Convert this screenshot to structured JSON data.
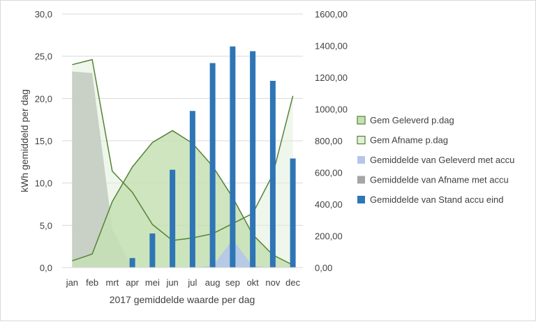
{
  "chart_data": {
    "type": "combo",
    "categories": [
      "jan",
      "feb",
      "mrt",
      "apr",
      "mei",
      "jun",
      "jul",
      "aug",
      "sep",
      "okt",
      "nov",
      "dec"
    ],
    "ylabel": "kWh gemiddeld per dag",
    "xlabel": "2017 gemiddelde waarde per dag",
    "ylim": [
      0,
      30
    ],
    "y_ticks": [
      "0,0",
      "5,0",
      "10,0",
      "15,0",
      "20,0",
      "25,0",
      "30,0"
    ],
    "y2lim": [
      0,
      1600
    ],
    "y2_ticks": [
      "0,00",
      "200,00",
      "400,00",
      "600,00",
      "800,00",
      "1000,00",
      "1200,00",
      "1400,00",
      "1600,00"
    ],
    "grid": true,
    "legend_position": "right",
    "series": [
      {
        "name": "Gemiddelde van Afname met accu",
        "kind": "area",
        "axis": "left",
        "color": "#a5a5a5",
        "values": [
          23.2,
          23.0,
          4.6,
          0,
          0,
          0,
          0,
          0,
          0,
          0,
          0,
          0
        ]
      },
      {
        "name": "Gem Afname p.dag",
        "kind": "area",
        "axis": "left",
        "color": "#e2efda",
        "line": "#548235",
        "values": [
          24.0,
          24.6,
          11.4,
          8.9,
          5.1,
          3.2,
          3.5,
          4.0,
          5.2,
          6.4,
          11.0,
          20.3
        ]
      },
      {
        "name": "Gem Geleverd p.dag",
        "kind": "area",
        "axis": "left",
        "color": "#c6e0b4",
        "line": "#548235",
        "values": [
          0.8,
          1.6,
          7.8,
          11.9,
          14.8,
          16.2,
          14.7,
          12.0,
          8.3,
          3.9,
          1.5,
          0.3
        ]
      },
      {
        "name": "Gemiddelde van Geleverd met accu",
        "kind": "area",
        "axis": "left",
        "color": "#b4c7e7",
        "values": [
          0,
          0,
          0,
          0,
          0,
          0,
          0,
          0.2,
          3.3,
          0.2,
          0,
          0
        ]
      },
      {
        "name": "Gemiddelde van Stand accu eind",
        "kind": "bar",
        "axis": "right",
        "color": "#2e75b6",
        "values": [
          0,
          0,
          0,
          60,
          215,
          617,
          988,
          1290,
          1395,
          1365,
          1178,
          688
        ]
      }
    ],
    "legend_order": [
      "Gem Geleverd p.dag",
      "Gem Afname p.dag",
      "Gemiddelde van Geleverd met accu",
      "Gemiddelde van Afname met accu",
      "Gemiddelde van Stand accu eind"
    ]
  }
}
